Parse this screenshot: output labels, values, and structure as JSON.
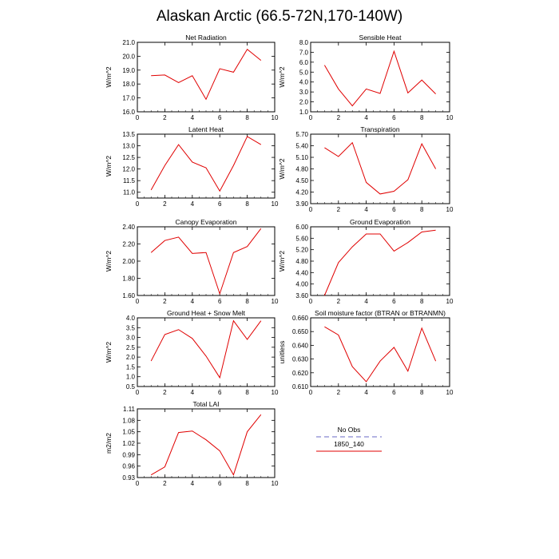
{
  "title": "Alaskan Arctic (66.5-72N,170-140W)",
  "legend": {
    "entries": [
      {
        "label": "No Obs",
        "color": "#9b9bd9",
        "dashed": true
      },
      {
        "label": "1850_140",
        "color": "#e00000",
        "dashed": false
      }
    ]
  },
  "chart_data": [
    {
      "type": "line",
      "title": "Net Radiation",
      "ylabel": "W/m^2",
      "xlim": [
        0,
        10
      ],
      "ylim": [
        16.0,
        21.0
      ],
      "xticks": [
        "0",
        "2",
        "4",
        "6",
        "8",
        "10"
      ],
      "yticks": [
        "16.0",
        "17.0",
        "18.0",
        "19.0",
        "20.0",
        "21.0"
      ],
      "x": [
        1,
        2,
        3,
        4,
        5,
        6,
        7,
        8,
        9
      ],
      "series": [
        {
          "name": "1850_140",
          "values": [
            18.6,
            18.65,
            18.1,
            18.6,
            16.9,
            19.1,
            18.85,
            20.5,
            19.7
          ]
        }
      ]
    },
    {
      "type": "line",
      "title": "Sensible Heat",
      "ylabel": "W/m^2",
      "xlim": [
        0,
        10
      ],
      "ylim": [
        1.0,
        8.0
      ],
      "xticks": [
        "0",
        "2",
        "4",
        "6",
        "8",
        "10"
      ],
      "yticks": [
        "1.0",
        "2.0",
        "3.0",
        "4.0",
        "5.0",
        "6.0",
        "7.0",
        "8.0"
      ],
      "x": [
        1,
        2,
        3,
        4,
        5,
        6,
        7,
        8,
        9
      ],
      "series": [
        {
          "name": "1850_140",
          "values": [
            5.7,
            3.3,
            1.6,
            3.3,
            2.85,
            7.1,
            2.9,
            4.2,
            2.8
          ]
        }
      ]
    },
    {
      "type": "line",
      "title": "Latent Heat",
      "ylabel": "W/m^2",
      "xlim": [
        0,
        10
      ],
      "ylim": [
        10.75,
        13.5
      ],
      "xticks": [
        "0",
        "2",
        "4",
        "6",
        "8",
        "10"
      ],
      "yticks": [
        "11.0",
        "11.5",
        "12.0",
        "12.5",
        "13.0",
        "13.5"
      ],
      "x": [
        1,
        2,
        3,
        4,
        5,
        6,
        7,
        8,
        9
      ],
      "series": [
        {
          "name": "1850_140",
          "values": [
            11.1,
            12.15,
            13.05,
            12.3,
            12.05,
            11.05,
            12.15,
            13.4,
            13.05
          ]
        }
      ]
    },
    {
      "type": "line",
      "title": "Transpiration",
      "ylabel": "W/m^2",
      "xlim": [
        0,
        10
      ],
      "ylim": [
        3.9,
        5.7
      ],
      "xticks": [
        "0",
        "2",
        "4",
        "6",
        "8",
        "10"
      ],
      "yticks": [
        "3.90",
        "4.20",
        "4.50",
        "4.80",
        "5.10",
        "5.40",
        "5.70"
      ],
      "x": [
        1,
        2,
        3,
        4,
        5,
        6,
        7,
        8,
        9
      ],
      "series": [
        {
          "name": "1850_140",
          "values": [
            5.35,
            5.12,
            5.48,
            4.45,
            4.15,
            4.22,
            4.52,
            5.45,
            4.8
          ]
        }
      ]
    },
    {
      "type": "line",
      "title": "Canopy Evaporation",
      "ylabel": "W/m^2",
      "xlim": [
        0,
        10
      ],
      "ylim": [
        1.6,
        2.4
      ],
      "xticks": [
        "0",
        "2",
        "4",
        "6",
        "8",
        "10"
      ],
      "yticks": [
        "1.60",
        "1.80",
        "2.00",
        "2.20",
        "2.40"
      ],
      "x": [
        1,
        2,
        3,
        4,
        5,
        6,
        7,
        8,
        9
      ],
      "series": [
        {
          "name": "1850_140",
          "values": [
            2.1,
            2.24,
            2.28,
            2.09,
            2.1,
            1.62,
            2.1,
            2.17,
            2.38
          ]
        }
      ]
    },
    {
      "type": "line",
      "title": "Ground Evaporation",
      "ylabel": "W/m^2",
      "xlim": [
        0,
        10
      ],
      "ylim": [
        3.6,
        6.0
      ],
      "xticks": [
        "0",
        "2",
        "4",
        "6",
        "8",
        "10"
      ],
      "yticks": [
        "3.60",
        "4.00",
        "4.40",
        "4.80",
        "5.20",
        "5.60",
        "6.00"
      ],
      "x": [
        1,
        2,
        3,
        4,
        5,
        6,
        7,
        8,
        9
      ],
      "series": [
        {
          "name": "1850_140",
          "values": [
            3.6,
            4.75,
            5.3,
            5.75,
            5.75,
            5.15,
            5.45,
            5.82,
            5.88
          ]
        }
      ]
    },
    {
      "type": "line",
      "title": "Ground Heat + Snow Melt",
      "ylabel": "W/m^2",
      "xlim": [
        0,
        10
      ],
      "ylim": [
        0.5,
        4.0
      ],
      "xticks": [
        "0",
        "2",
        "4",
        "6",
        "8",
        "10"
      ],
      "yticks": [
        "0.5",
        "1.0",
        "1.5",
        "2.0",
        "2.5",
        "3.0",
        "3.5",
        "4.0"
      ],
      "x": [
        1,
        2,
        3,
        4,
        5,
        6,
        7,
        8,
        9
      ],
      "series": [
        {
          "name": "1850_140",
          "values": [
            1.8,
            3.15,
            3.4,
            2.95,
            2.05,
            0.95,
            3.85,
            2.9,
            3.85
          ]
        }
      ]
    },
    {
      "type": "line",
      "title": "Soil moisture factor (BTRAN or BTRANMN)",
      "ylabel": "unitless",
      "xlim": [
        0,
        10
      ],
      "ylim": [
        0.61,
        0.66
      ],
      "xticks": [
        "0",
        "2",
        "4",
        "6",
        "8",
        "10"
      ],
      "yticks": [
        "0.610",
        "0.620",
        "0.630",
        "0.640",
        "0.650",
        "0.660"
      ],
      "x": [
        1,
        2,
        3,
        4,
        5,
        6,
        7,
        8,
        9
      ],
      "series": [
        {
          "name": "1850_140",
          "values": [
            0.6535,
            0.6475,
            0.6245,
            0.6135,
            0.6285,
            0.6385,
            0.6212,
            0.6525,
            0.6285
          ]
        }
      ]
    },
    {
      "type": "line",
      "title": "Total LAI",
      "ylabel": "m2/m2",
      "xlim": [
        0,
        10
      ],
      "ylim": [
        0.93,
        1.11
      ],
      "xticks": [
        "0",
        "2",
        "4",
        "6",
        "8",
        "10"
      ],
      "yticks": [
        "0.93",
        "0.96",
        "0.99",
        "1.02",
        "1.05",
        "1.08",
        "1.11"
      ],
      "x": [
        1,
        2,
        3,
        4,
        5,
        6,
        7,
        8,
        9
      ],
      "series": [
        {
          "name": "1850_140",
          "values": [
            0.937,
            0.958,
            1.048,
            1.052,
            1.029,
            1.0,
            0.937,
            1.05,
            1.095
          ]
        }
      ]
    }
  ]
}
